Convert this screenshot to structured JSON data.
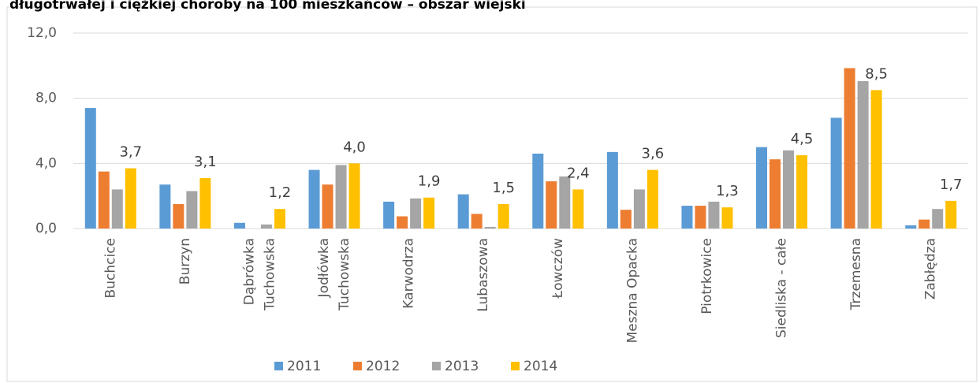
{
  "chart_data": {
    "type": "bar",
    "title": "długotrwałej i ciężkiej choroby na 100 mieszkańców – obszar wiejski",
    "categories": [
      "Buchcice",
      "Burzyn",
      "Dąbrówka Tuchowska",
      "Jodłówka Tuchowska",
      "Karwodrza",
      "Lubaszowa",
      "Łowczów",
      "Meszna Opacka",
      "Piotrkowice",
      "Siedliska - całe",
      "Trzemesna",
      "Zabłędza"
    ],
    "series": [
      {
        "name": "2011",
        "color": "#5b9bd5",
        "values": [
          7.4,
          2.7,
          0.35,
          3.6,
          1.65,
          2.1,
          4.6,
          4.7,
          1.4,
          5.0,
          6.8,
          0.2
        ]
      },
      {
        "name": "2012",
        "color": "#ed7d31",
        "values": [
          3.5,
          1.5,
          0,
          2.7,
          0.75,
          0.9,
          2.9,
          1.15,
          1.4,
          4.25,
          9.85,
          0.55
        ]
      },
      {
        "name": "2013",
        "color": "#a5a5a5",
        "values": [
          2.4,
          2.3,
          0.25,
          3.9,
          1.85,
          0.1,
          3.2,
          2.4,
          1.65,
          4.8,
          9.05,
          1.2
        ]
      },
      {
        "name": "2014",
        "color": "#ffc000",
        "values": [
          3.7,
          3.1,
          1.2,
          4.0,
          1.9,
          1.5,
          2.4,
          3.6,
          1.3,
          4.5,
          8.5,
          1.7
        ],
        "value_labels": [
          "3,7",
          "3,1",
          "1,2",
          "4,0",
          "1,9",
          "1,5",
          "2,4",
          "3,6",
          "1,3",
          "4,5",
          "8,5",
          "1,7"
        ]
      }
    ],
    "ylim": [
      0,
      12
    ],
    "yticks": [
      {
        "value": 0,
        "label": "0,0"
      },
      {
        "value": 4,
        "label": "4,0"
      },
      {
        "value": 8,
        "label": "8,0"
      },
      {
        "value": 12,
        "label": "12,0"
      }
    ],
    "grid": true,
    "legend": "bottom"
  }
}
